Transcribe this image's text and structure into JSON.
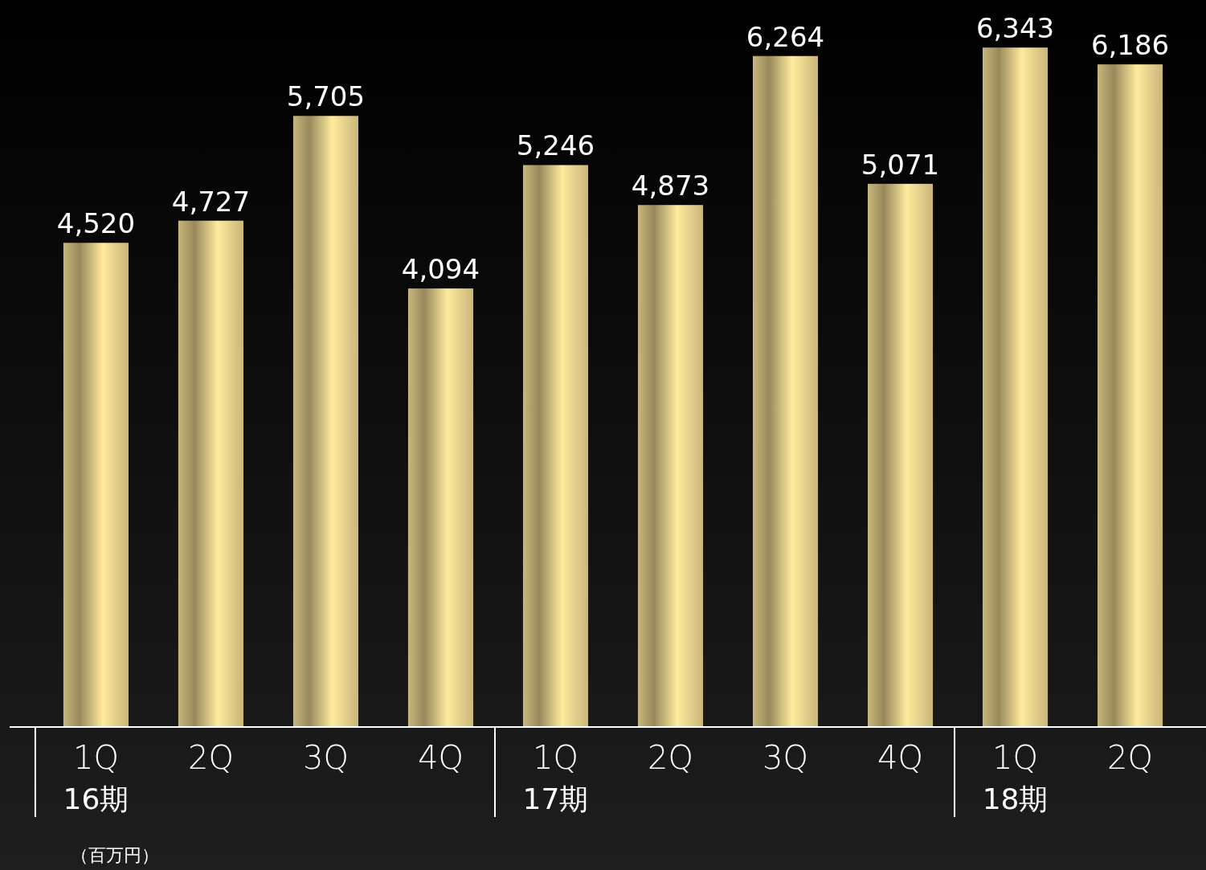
{
  "chart_data": {
    "type": "bar",
    "categories": [
      "1Q\n16期",
      "2Q",
      "3Q",
      "4Q",
      "1Q\n17期",
      "2Q",
      "3Q",
      "4Q",
      "1Q\n18期",
      "2Q"
    ],
    "values": [
      4520,
      4727,
      5705,
      4094,
      5246,
      4873,
      6264,
      5071,
      6343,
      6186
    ],
    "color": "#c9b67a",
    "value_labels": [
      "4,520",
      "4,727",
      "5,705",
      "4,094",
      "5,246",
      "4,873",
      "6,264",
      "5,071",
      "6,343",
      "6,186"
    ],
    "annotations": [
      "（百万円）"
    ]
  }
}
